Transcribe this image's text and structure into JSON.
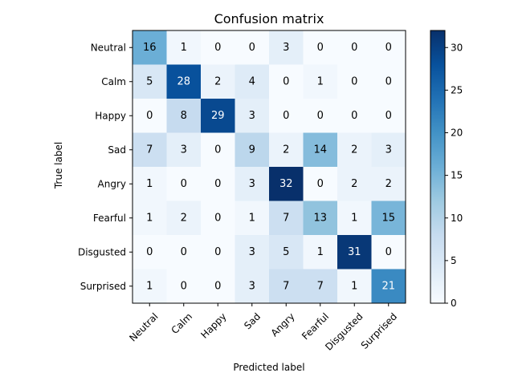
{
  "chart_data": {
    "type": "heatmap",
    "title": "Confusion matrix",
    "xlabel": "Predicted label",
    "ylabel": "True label",
    "x_categories": [
      "Neutral",
      "Calm",
      "Happy",
      "Sad",
      "Angry",
      "Fearful",
      "Disgusted",
      "Surprised"
    ],
    "y_categories": [
      "Neutral",
      "Calm",
      "Happy",
      "Sad",
      "Angry",
      "Fearful",
      "Disgusted",
      "Surprised"
    ],
    "matrix": [
      [
        16,
        1,
        0,
        0,
        3,
        0,
        0,
        0
      ],
      [
        5,
        28,
        2,
        4,
        0,
        1,
        0,
        0
      ],
      [
        0,
        8,
        29,
        3,
        0,
        0,
        0,
        0
      ],
      [
        7,
        3,
        0,
        9,
        2,
        14,
        2,
        3
      ],
      [
        1,
        0,
        0,
        3,
        32,
        0,
        2,
        2
      ],
      [
        1,
        2,
        0,
        1,
        7,
        13,
        1,
        15
      ],
      [
        0,
        0,
        0,
        3,
        5,
        1,
        31,
        0
      ],
      [
        1,
        0,
        0,
        3,
        7,
        7,
        1,
        21
      ]
    ],
    "colormap": "Blues",
    "vmin": 0,
    "vmax": 32,
    "colorbar_ticks": [
      0,
      5,
      10,
      15,
      20,
      25,
      30
    ],
    "x_tick_rotation_deg": 45
  },
  "colors": {
    "low": "#f7fbff",
    "high": "#08306b",
    "text_dark": "#000000",
    "text_light": "#ffffff"
  }
}
